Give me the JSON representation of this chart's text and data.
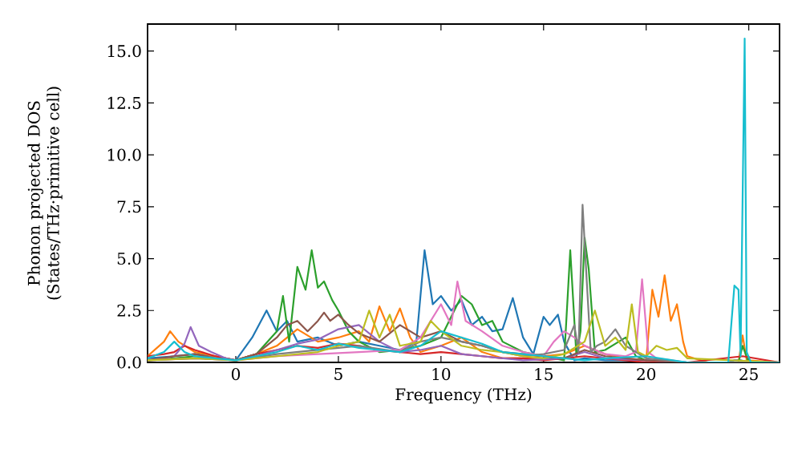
{
  "chart_data": {
    "type": "line",
    "xlabel": "Frequency (THz)",
    "ylabel": "Phonon projected DOS (States/THz·primitive cell)",
    "xlim": [
      -4.3,
      26.5
    ],
    "ylim": [
      0,
      16.3
    ],
    "xticks": [
      0,
      5,
      10,
      15,
      20,
      25
    ],
    "yticks": [
      {
        "value": 0,
        "label": "0.0"
      },
      {
        "value": 2.5,
        "label": "2.5"
      },
      {
        "value": 5,
        "label": "5.0"
      },
      {
        "value": 7.5,
        "label": "7.5"
      },
      {
        "value": 10,
        "label": "10.0"
      },
      {
        "value": 12.5,
        "label": "12.5"
      },
      {
        "value": 15,
        "label": "15.0"
      }
    ],
    "grid": false,
    "marker": "none",
    "line_style": "solid",
    "series": [
      {
        "color": "#1f77b4",
        "x": [
          -4.3,
          -3,
          -2,
          -1,
          0,
          0.8,
          1.5,
          2,
          2.5,
          3,
          4,
          5,
          6,
          7,
          8,
          8.8,
          9.2,
          9.6,
          10,
          10.5,
          11,
          11.5,
          12,
          12.5,
          13,
          13.5,
          14,
          14.5,
          15,
          15.3,
          15.7,
          16,
          16.5,
          17,
          18,
          20,
          22,
          24,
          24.3,
          24.6,
          25,
          26.5
        ],
        "values": [
          0.2,
          0.3,
          0.4,
          0.3,
          0.1,
          1.2,
          2.5,
          1.5,
          2.0,
          1.0,
          1.2,
          0.8,
          1.0,
          0.8,
          0.6,
          1.0,
          5.4,
          2.8,
          3.2,
          2.5,
          3.0,
          1.8,
          2.2,
          1.5,
          1.6,
          3.1,
          1.2,
          0.4,
          2.2,
          1.8,
          2.3,
          1.0,
          0.1,
          0.2,
          0.1,
          0.1,
          0,
          0,
          0.1,
          0.1,
          0,
          0
        ]
      },
      {
        "color": "#ff7f0e",
        "x": [
          -4.3,
          -3.5,
          -3.2,
          -2.8,
          -2,
          -1,
          0,
          1,
          2,
          3,
          4,
          5,
          6,
          6.5,
          7,
          7.5,
          8,
          8.5,
          9,
          10,
          11,
          12,
          13,
          14,
          15,
          16,
          17,
          17.5,
          18,
          19,
          20,
          20.3,
          20.6,
          20.9,
          21.2,
          21.5,
          21.8,
          22,
          23,
          24.5,
          24.7,
          24.9,
          26.5
        ],
        "values": [
          0.3,
          1.0,
          1.5,
          1.0,
          0.5,
          0.3,
          0.1,
          0.4,
          0.8,
          1.6,
          1.0,
          1.2,
          1.5,
          1.0,
          2.7,
          1.5,
          2.6,
          1.2,
          0.5,
          0.8,
          1.2,
          0.5,
          0.2,
          0.2,
          0.3,
          0.4,
          0.8,
          0.6,
          0.4,
          0.2,
          0.1,
          3.5,
          2.2,
          4.2,
          2.0,
          2.8,
          1.0,
          0.3,
          0,
          0,
          1.3,
          0.1,
          0
        ]
      },
      {
        "color": "#2ca02c",
        "x": [
          -4.3,
          -3,
          -2,
          -1,
          0,
          1,
          2,
          2.3,
          2.6,
          3,
          3.4,
          3.7,
          4,
          4.3,
          4.7,
          5,
          5.5,
          6,
          7,
          8,
          9,
          10,
          10.5,
          11,
          11.5,
          12,
          12.5,
          13,
          14,
          15,
          16,
          16.3,
          16.6,
          16.8,
          17.0,
          17.2,
          17.5,
          18,
          19,
          19.5,
          20,
          21,
          24.5,
          24.7,
          25,
          26.5
        ],
        "values": [
          0.1,
          0.2,
          0.3,
          0.2,
          0.1,
          0.4,
          1.5,
          3.2,
          1.0,
          4.6,
          3.5,
          5.4,
          3.6,
          3.9,
          3.0,
          2.5,
          1.5,
          1.0,
          0.5,
          0.6,
          0.8,
          1.2,
          2.2,
          3.2,
          2.8,
          1.8,
          2.0,
          1.0,
          0.5,
          0.3,
          0.1,
          5.4,
          0.3,
          1.5,
          6.0,
          4.5,
          0.5,
          0.6,
          1.2,
          0.3,
          0.1,
          0,
          0,
          0.8,
          0,
          0
        ]
      },
      {
        "color": "#d62728",
        "x": [
          -4.3,
          -3.5,
          -3,
          -2.5,
          -2,
          -1,
          0,
          1,
          2,
          3,
          4,
          5,
          6,
          7,
          8,
          9,
          10,
          11,
          12,
          13,
          14,
          15,
          16,
          17,
          18,
          19,
          20,
          22,
          24.7,
          26.5
        ],
        "values": [
          0.3,
          0.4,
          0.5,
          0.8,
          0.6,
          0.3,
          0.1,
          0.4,
          0.6,
          0.8,
          0.7,
          0.9,
          0.8,
          0.6,
          0.5,
          0.4,
          0.5,
          0.4,
          0.3,
          0.2,
          0.2,
          0.1,
          0.2,
          0.3,
          0.2,
          0.1,
          0,
          0,
          0.3,
          0
        ]
      },
      {
        "color": "#9467bd",
        "x": [
          -4.3,
          -3.5,
          -3,
          -2.5,
          -2.2,
          -1.8,
          -1.2,
          -0.5,
          0,
          1,
          2,
          3,
          4,
          5,
          6,
          7,
          8,
          9,
          10,
          11,
          12,
          14,
          16,
          17,
          18,
          20,
          22,
          26.5
        ],
        "values": [
          0.1,
          0.2,
          0.3,
          0.9,
          1.7,
          0.8,
          0.5,
          0.2,
          0.1,
          0.3,
          0.6,
          0.9,
          1.1,
          1.6,
          1.8,
          1.0,
          0.5,
          0.6,
          0.8,
          0.4,
          0.3,
          0.1,
          0.2,
          0.5,
          0.2,
          0.1,
          0,
          0
        ]
      },
      {
        "color": "#8c564b",
        "x": [
          -4.3,
          -3,
          -2,
          -1,
          0,
          1,
          2,
          2.5,
          3,
          3.5,
          4,
          4.3,
          4.6,
          5,
          5.5,
          6,
          7,
          8,
          9,
          10,
          11,
          12,
          13,
          14,
          15,
          16,
          17,
          18,
          19,
          20,
          22,
          26.5
        ],
        "values": [
          0.1,
          0.3,
          0.4,
          0.2,
          0.1,
          0.4,
          1.2,
          1.8,
          2.0,
          1.5,
          2.0,
          2.4,
          2.0,
          2.3,
          1.8,
          1.4,
          1.0,
          1.8,
          1.2,
          1.5,
          1.0,
          0.8,
          0.5,
          0.4,
          0.3,
          0.2,
          0.6,
          0.3,
          0.2,
          0.1,
          0,
          0
        ]
      },
      {
        "color": "#e377c2",
        "x": [
          -4.3,
          -2,
          0,
          2,
          4,
          6,
          8,
          9,
          10,
          10.5,
          10.8,
          11.2,
          12,
          13,
          14,
          15,
          15.5,
          16,
          16.5,
          17,
          18,
          19,
          19.5,
          19.8,
          20.1,
          20.5,
          22,
          26.5
        ],
        "values": [
          0.1,
          0.2,
          0.1,
          0.3,
          0.4,
          0.5,
          0.6,
          1.2,
          2.8,
          1.8,
          3.9,
          2.0,
          1.5,
          0.8,
          0.5,
          0.3,
          1.0,
          1.5,
          1.2,
          0.8,
          0.4,
          0.3,
          0.5,
          4.0,
          0.5,
          0.2,
          0,
          0
        ]
      },
      {
        "color": "#7f7f7f",
        "x": [
          -4.3,
          -2,
          0,
          2,
          4,
          6,
          8,
          9,
          10,
          11,
          12,
          13,
          14,
          15,
          16,
          16.5,
          16.7,
          16.9,
          17.1,
          17.3,
          17.6,
          18,
          18.5,
          19,
          19.5,
          20,
          22,
          26.5
        ],
        "values": [
          0.1,
          0.2,
          0.1,
          0.4,
          0.6,
          0.8,
          0.5,
          1.0,
          1.2,
          1.0,
          0.8,
          0.5,
          0.3,
          0.4,
          0.6,
          1.8,
          0.5,
          7.6,
          4.0,
          0.5,
          0.8,
          1.0,
          1.6,
          0.8,
          0.5,
          0.2,
          0,
          0
        ]
      },
      {
        "color": "#bcbd22",
        "x": [
          -4.3,
          -2,
          0,
          2,
          4,
          5,
          6,
          6.5,
          7,
          7.5,
          8,
          9,
          9.5,
          10,
          11,
          12,
          13,
          14,
          15,
          16,
          17,
          17.5,
          18,
          18.5,
          19,
          19.3,
          19.6,
          20,
          20.5,
          21,
          21.5,
          22,
          26.5
        ],
        "values": [
          0.1,
          0.2,
          0.1,
          0.3,
          0.5,
          0.8,
          1.0,
          2.5,
          1.2,
          2.3,
          0.8,
          1.0,
          2.0,
          1.5,
          0.8,
          0.6,
          0.5,
          0.3,
          0.2,
          0.4,
          1.0,
          2.5,
          0.8,
          1.2,
          0.6,
          2.8,
          0.5,
          0.3,
          0.8,
          0.6,
          0.7,
          0.2,
          0
        ]
      },
      {
        "color": "#17becf",
        "x": [
          -4.3,
          -3.5,
          -3.0,
          -2.5,
          -2,
          -1,
          0,
          1,
          2,
          3,
          4,
          5,
          6,
          7,
          8,
          9,
          10,
          11,
          12,
          13,
          14,
          15,
          16,
          17,
          18,
          20,
          22,
          24,
          24.3,
          24.5,
          24.6,
          24.8,
          24.9,
          25.1,
          26.5
        ],
        "values": [
          0.2,
          0.5,
          1.0,
          0.5,
          0.3,
          0.2,
          0.1,
          0.3,
          0.5,
          0.8,
          0.6,
          0.9,
          0.7,
          0.6,
          0.5,
          0.8,
          1.5,
          1.2,
          0.9,
          0.5,
          0.4,
          0.3,
          0.2,
          0.1,
          0.2,
          0.3,
          0,
          0,
          3.7,
          3.5,
          0.3,
          15.6,
          0.5,
          0,
          0
        ]
      }
    ]
  }
}
